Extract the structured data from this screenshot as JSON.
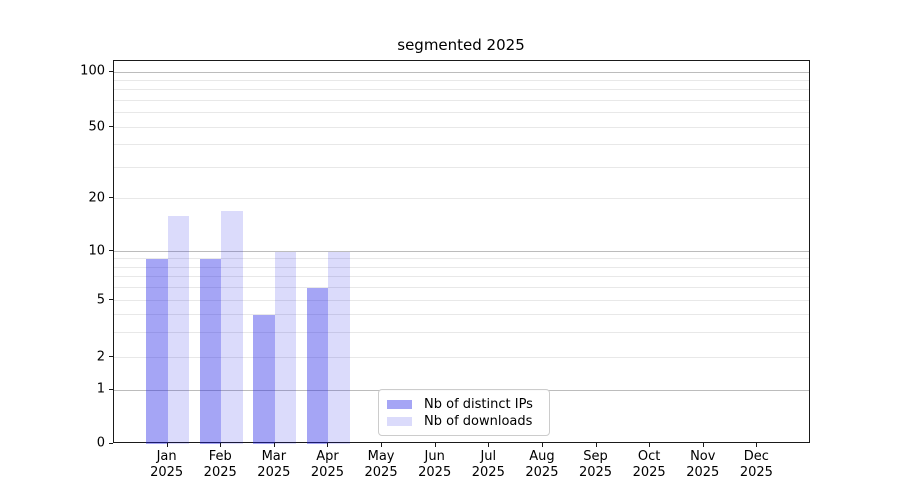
{
  "chart_data": {
    "type": "bar",
    "title": "segmented 2025",
    "categories": [
      "Jan",
      "Feb",
      "Mar",
      "Apr",
      "May",
      "Jun",
      "Jul",
      "Aug",
      "Sep",
      "Oct",
      "Nov",
      "Dec"
    ],
    "category_year": "2025",
    "series": [
      {
        "name": "Nb of distinct IPs",
        "color": "rgba(30,30,230,0.40)",
        "values": [
          9,
          9,
          4,
          6,
          0,
          0,
          0,
          0,
          0,
          0,
          0,
          0
        ]
      },
      {
        "name": "Nb of downloads",
        "color": "rgba(30,30,230,0.16)",
        "values": [
          16,
          17,
          10,
          10,
          0,
          0,
          0,
          0,
          0,
          0,
          0,
          0
        ]
      }
    ],
    "yscale": "segmented (linear 0-1, log above)",
    "ymajor_ticks": [
      0,
      1,
      2,
      5,
      10,
      20,
      50,
      100
    ],
    "yminor_gridlines": [
      3,
      4,
      6,
      7,
      8,
      9,
      30,
      40,
      60,
      70,
      80,
      90
    ],
    "ylim": [
      0,
      115
    ],
    "xlabel": "",
    "ylabel": "",
    "grid": true,
    "legend_position": "lower center",
    "colors": {
      "grid_major": "#bcbcbc",
      "grid_minor": "#e8e8e8",
      "spine": "#1a1a1a",
      "background": "#ffffff"
    }
  }
}
